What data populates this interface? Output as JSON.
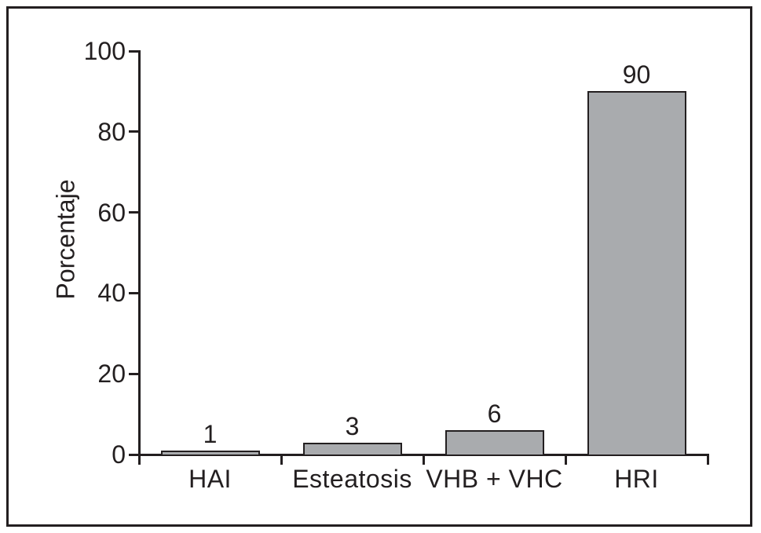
{
  "chart_data": {
    "type": "bar",
    "title": "",
    "xlabel": "",
    "ylabel": "Porcentaje",
    "categories": [
      "HAI",
      "Esteatosis",
      "VHB + VHC",
      "HRI"
    ],
    "values": [
      1,
      3,
      6,
      90
    ],
    "value_labels": [
      "1",
      "3",
      "6",
      "90"
    ],
    "ylim": [
      0,
      100
    ],
    "yticks": [
      0,
      20,
      40,
      60,
      80,
      100
    ],
    "grid": false,
    "legend": "none",
    "colors": {
      "bar_fill": "#a9abae",
      "bar_border": "#231f20",
      "axis": "#231f20",
      "text": "#231f20",
      "background": "#ffffff",
      "frame_border": "#231f20"
    }
  }
}
